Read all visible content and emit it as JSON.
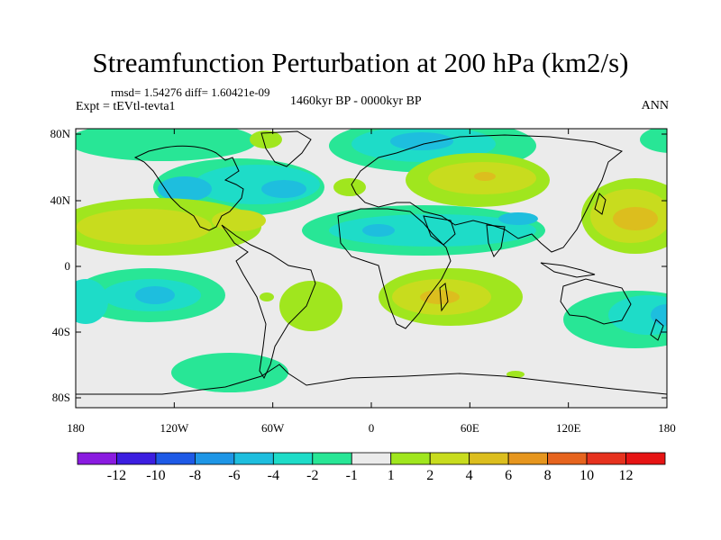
{
  "title": "Streamfunction Perturbation at 200 hPa (km2/s)",
  "stats": "rmsd= 1.54276 diff= 1.60421e-09",
  "experiment": "Expt = tEVtl-tevta1",
  "period": "1460kyr BP - 0000kyr BP",
  "season": "ANN",
  "axes": {
    "lon_labels": [
      "180",
      "120W",
      "60W",
      "0",
      "60E",
      "120E",
      "180"
    ],
    "lat_labels": [
      "80N",
      "40N",
      "0",
      "40S",
      "80S"
    ]
  },
  "colorbar": {
    "labels": [
      "-12",
      "-10",
      "-8",
      "-6",
      "-4",
      "-2",
      "-1",
      "1",
      "2",
      "4",
      "6",
      "8",
      "10",
      "12"
    ],
    "colors": [
      "#8a1be0",
      "#3c1ee0",
      "#1e5ae6",
      "#1e96e6",
      "#1ebede",
      "#1edcc8",
      "#28e696",
      "#ebebeb",
      "#a0e61e",
      "#c8dc1e",
      "#dcbe1e",
      "#e6961e",
      "#e6641e",
      "#e6321e",
      "#e61414"
    ]
  },
  "colors": {
    "land_outline": "#000000",
    "neutral_fill": "#ebebeb"
  }
}
